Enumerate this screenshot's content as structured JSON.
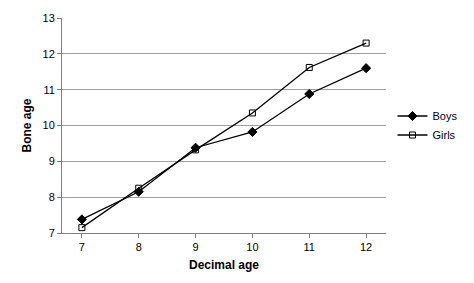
{
  "chart_data": {
    "type": "line",
    "x_label": "Decimal age",
    "y_label": "Bone age",
    "categories": [
      "7",
      "8",
      "9",
      "10",
      "11",
      "12"
    ],
    "series": [
      {
        "name": "Boys",
        "color": "#000000",
        "marker": "diamond",
        "line_style": "solid",
        "values": [
          7.38,
          8.15,
          9.38,
          9.82,
          10.88,
          11.6
        ]
      },
      {
        "name": "Girls",
        "color": "#000000",
        "marker": "square-open",
        "line_style": "solid",
        "values": [
          7.15,
          8.25,
          9.32,
          10.35,
          11.62,
          12.3
        ]
      }
    ],
    "ylim": [
      7,
      13
    ],
    "yticks": [
      7,
      8,
      9,
      10,
      11,
      12,
      13
    ],
    "grid": true,
    "legend": "right"
  }
}
